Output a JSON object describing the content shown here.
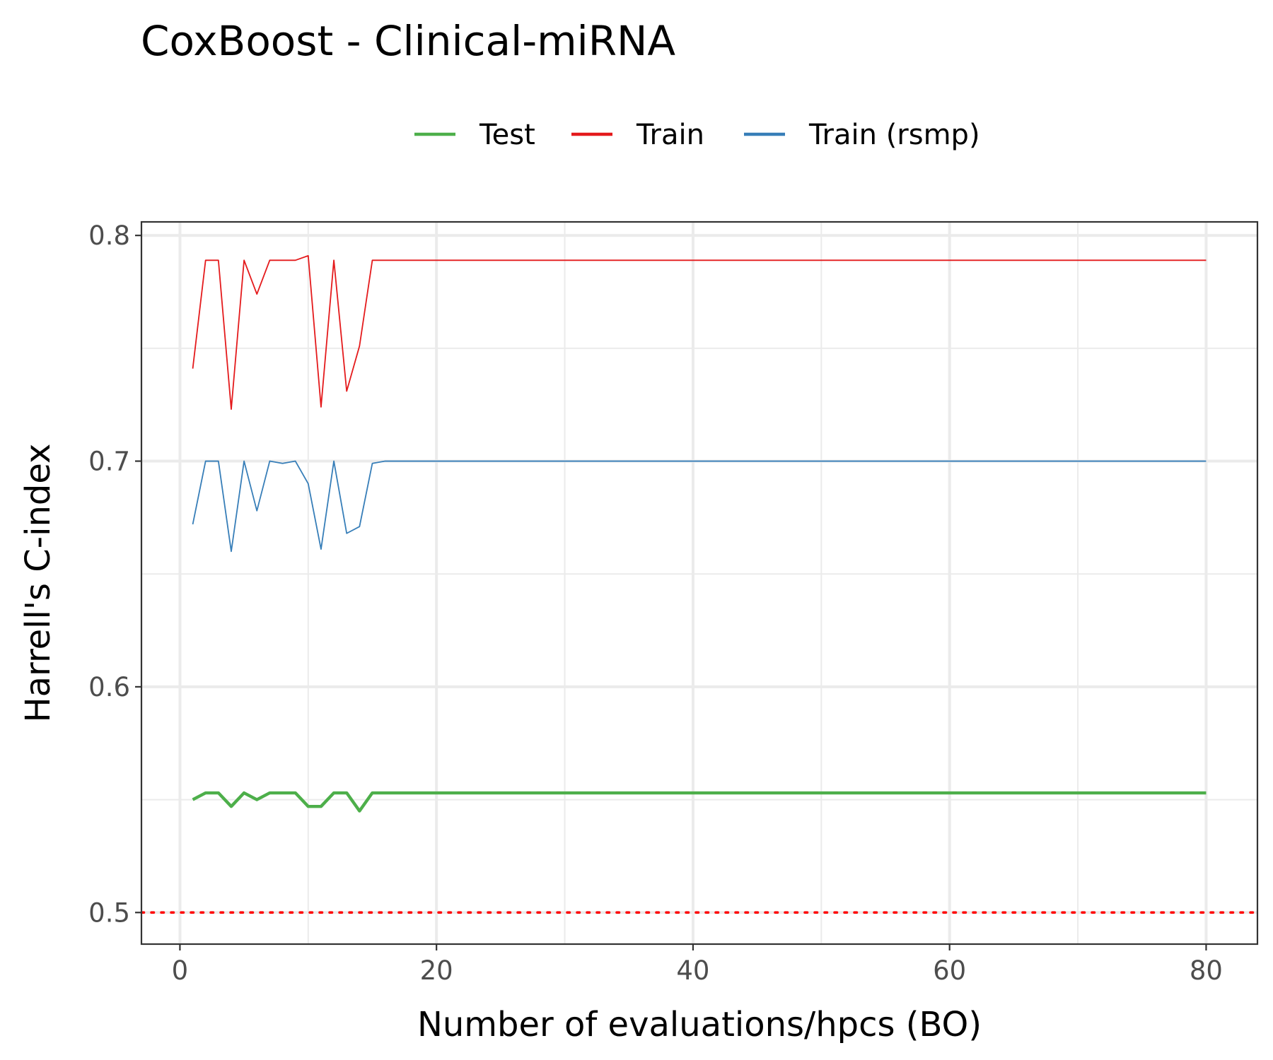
{
  "chart_data": {
    "type": "line",
    "title": "CoxBoost - Clinical-miRNA",
    "xlabel": "Number of evaluations/hpcs (BO)",
    "ylabel": "Harrell's C-index",
    "xlim": [
      -3,
      84
    ],
    "ylim": [
      0.486,
      0.806
    ],
    "x_ticks": [
      0,
      20,
      40,
      60,
      80
    ],
    "x_tick_labels": [
      "0",
      "20",
      "40",
      "60",
      "80"
    ],
    "y_ticks": [
      0.5,
      0.6,
      0.7,
      0.8
    ],
    "y_tick_labels": [
      "0.5",
      "0.6",
      "0.7",
      "0.8"
    ],
    "grid": true,
    "legend_position": "top",
    "reference_line": {
      "y": 0.5,
      "style": "dotted",
      "color": "#ff0000"
    },
    "series": [
      {
        "name": "Test",
        "color": "#4daf4a",
        "line_width": "thick",
        "x_start": 1,
        "x_end": 80,
        "values": [
          0.55,
          0.553,
          0.553,
          0.547,
          0.553,
          0.55,
          0.553,
          0.553,
          0.553,
          0.547,
          0.547,
          0.553,
          0.553,
          0.545,
          0.553,
          0.553
        ],
        "plateau_from": 16,
        "plateau_value": 0.553
      },
      {
        "name": "Train",
        "color": "#e41a1c",
        "line_width": "thin",
        "x_start": 1,
        "x_end": 80,
        "values": [
          0.741,
          0.789,
          0.789,
          0.723,
          0.789,
          0.774,
          0.789,
          0.789,
          0.789,
          0.791,
          0.724,
          0.789,
          0.731,
          0.751,
          0.789,
          0.789
        ],
        "plateau_from": 16,
        "plateau_value": 0.789
      },
      {
        "name": "Train (rsmp)",
        "color": "#377eb8",
        "line_width": "thin",
        "x_start": 1,
        "x_end": 80,
        "values": [
          0.672,
          0.7,
          0.7,
          0.66,
          0.7,
          0.678,
          0.7,
          0.699,
          0.7,
          0.69,
          0.661,
          0.7,
          0.668,
          0.671,
          0.699,
          0.7
        ],
        "plateau_from": 16,
        "plateau_value": 0.7
      }
    ]
  }
}
